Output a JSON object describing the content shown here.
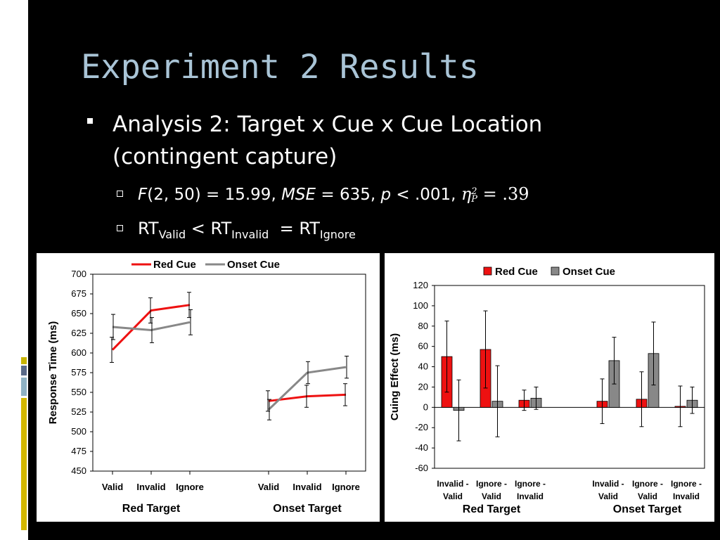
{
  "slide": {
    "title": "Experiment 2 Results",
    "bullet_line1": "Analysis 2: Target x Cue x Cue Location",
    "bullet_line2": "(contingent capture)",
    "stat_F": "F",
    "stat_rest1": "(2, 50) = 15.99, ",
    "stat_MSE": "MSE",
    "stat_rest2": " = 635, ",
    "stat_p": "p",
    "stat_rest3": " < .001, ",
    "stat_eta": "η",
    "stat_eta_sup": "2",
    "stat_eta_sub": "P",
    "stat_eta_val": " = .39",
    "rt": "RT",
    "sub_valid": "Valid",
    "sub_invalid": "Invalid",
    "sub_ignore": "Ignore",
    "lt": " < ",
    "eq": "  = "
  },
  "colors": {
    "red": "#ee1111",
    "gray": "#888888",
    "title": "#a9c4d6"
  },
  "chart_data": [
    {
      "type": "line",
      "legend": [
        "Red Cue",
        "Onset Cue"
      ],
      "ylabel": "Response Time (ms)",
      "ylim": [
        450,
        700
      ],
      "yticks": [
        450,
        475,
        500,
        525,
        550,
        575,
        600,
        625,
        650,
        675,
        700
      ],
      "groups": [
        {
          "label": "Red Target",
          "categories": [
            "Valid",
            "Invalid",
            "Ignore"
          ]
        },
        {
          "label": "Onset Target",
          "categories": [
            "Valid",
            "Invalid",
            "Ignore"
          ]
        }
      ],
      "series": [
        {
          "name": "Red Cue",
          "color": "#ee1111",
          "values": [
            [
              604,
              654,
              661
            ],
            [
              539,
              545,
              547
            ]
          ],
          "errors": [
            [
              16,
              16,
              16
            ],
            [
              13,
              14,
              14
            ]
          ]
        },
        {
          "name": "Onset Cue",
          "color": "#888888",
          "values": [
            [
              633,
              629,
              639
            ],
            [
              528,
              575,
              582
            ]
          ],
          "errors": [
            [
              16,
              16,
              16
            ],
            [
              13,
              14,
              14
            ]
          ]
        }
      ]
    },
    {
      "type": "bar",
      "legend": [
        "Red Cue",
        "Onset Cue"
      ],
      "ylabel": "Cuing Effect (ms)",
      "ylim": [
        -60,
        120
      ],
      "yticks": [
        -60,
        -40,
        -20,
        0,
        20,
        40,
        60,
        80,
        100,
        120
      ],
      "groups": [
        {
          "label": "Red Target",
          "categories": [
            [
              "Invalid -",
              "Valid"
            ],
            [
              "Ignore -",
              "Valid"
            ],
            [
              "Ignore -",
              "Invalid"
            ]
          ]
        },
        {
          "label": "Onset Target",
          "categories": [
            [
              "Invalid -",
              "Valid"
            ],
            [
              "Ignore -",
              "Valid"
            ],
            [
              "Ignore -",
              "Invalid"
            ]
          ]
        }
      ],
      "series": [
        {
          "name": "Red Cue",
          "color": "#ee1111",
          "values": [
            [
              50,
              57,
              7
            ],
            [
              6,
              8,
              1
            ]
          ],
          "errors": [
            [
              35,
              38,
              10
            ],
            [
              22,
              27,
              20
            ]
          ]
        },
        {
          "name": "Onset Cue",
          "color": "#888888",
          "values": [
            [
              -3,
              6,
              9
            ],
            [
              46,
              53,
              7
            ]
          ],
          "errors": [
            [
              30,
              35,
              11
            ],
            [
              23,
              31,
              13
            ]
          ]
        }
      ]
    }
  ]
}
